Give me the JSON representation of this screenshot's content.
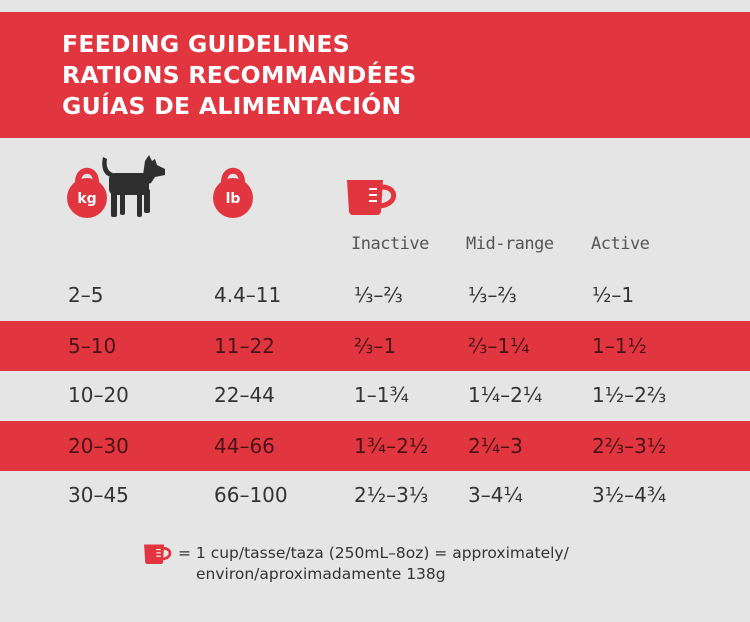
{
  "header": {
    "title_en": "FEEDING GUIDELINES",
    "title_fr": "RATIONS RECOMMANDÉES",
    "title_es": "GUÍAS DE ALIMENTACIÓN"
  },
  "icons": {
    "kg_label": "kg",
    "lb_label": "lb",
    "weight_icon": "kettlebell-icon",
    "dog_icon": "dog-icon",
    "cup_icon": "measuring-cup-icon"
  },
  "columns": {
    "inactive": "Inactive",
    "midrange": "Mid-range",
    "active": "Active"
  },
  "rows": [
    {
      "kg": "2–5",
      "lb": "4.4–11",
      "inactive": "⅓–⅔",
      "midrange": "⅓–⅔",
      "active": "½–1"
    },
    {
      "kg": "5–10",
      "lb": "11–22",
      "inactive": "⅔–1",
      "midrange": "⅔–1¼",
      "active": "1–1½"
    },
    {
      "kg": "10–20",
      "lb": "22–44",
      "inactive": "1–1¾",
      "midrange": "1¼–2¼",
      "active": "1½–2⅔"
    },
    {
      "kg": "20–30",
      "lb": "44–66",
      "inactive": "1¾–2½",
      "midrange": "2¼–3",
      "active": "2⅔–3½"
    },
    {
      "kg": "30–45",
      "lb": "66–100",
      "inactive": "2½–3⅓",
      "midrange": "3–4¼",
      "active": "3½–4¾"
    }
  ],
  "footer": {
    "line1": "= 1 cup/tasse/taza (250mL–8oz) = approximately/",
    "line2": "environ/aproximadamente 138g"
  },
  "colors": {
    "accent": "#e1363f",
    "background": "#e5e5e6",
    "text": "#333333",
    "highlight_text": "#4a1316"
  }
}
